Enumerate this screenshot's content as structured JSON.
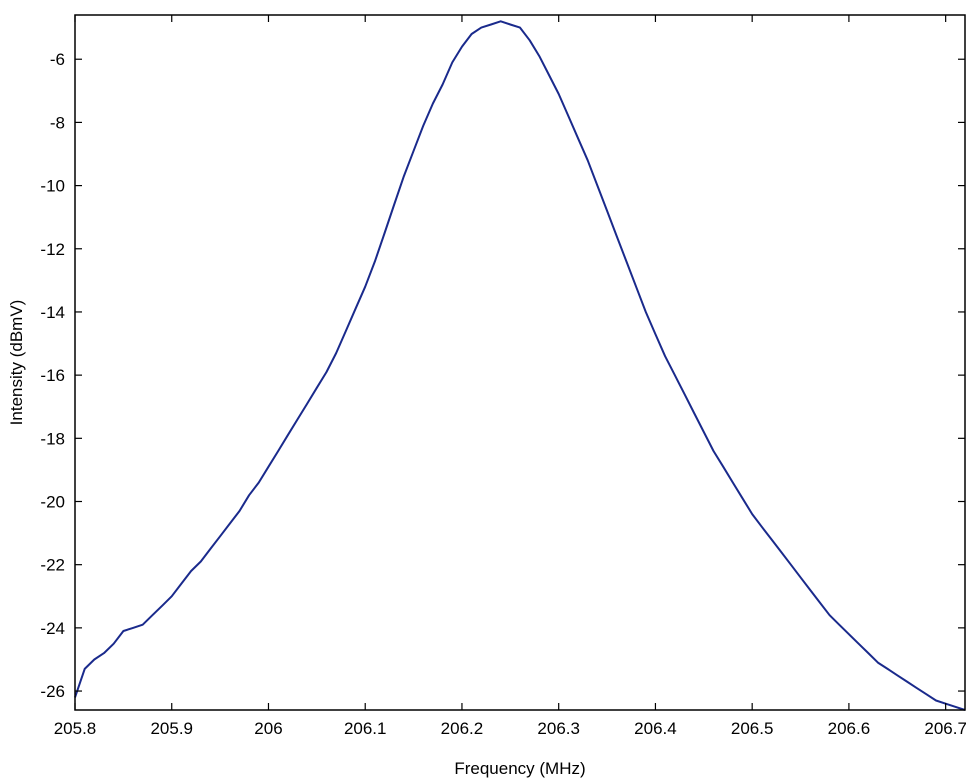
{
  "chart_data": {
    "type": "line",
    "title": "",
    "xlabel": "Frequency (MHz)",
    "ylabel": "Intensity (dBmV)",
    "xlim": [
      205.8,
      206.72
    ],
    "ylim": [
      -26.6,
      -4.6
    ],
    "xticks": [
      205.8,
      205.9,
      206,
      206.1,
      206.2,
      206.3,
      206.4,
      206.5,
      206.6,
      206.7
    ],
    "xtick_labels": [
      "205.8",
      "205.9",
      "206",
      "206.1",
      "206.2",
      "206.3",
      "206.4",
      "206.5",
      "206.6",
      "206.7"
    ],
    "yticks": [
      -6,
      -8,
      -10,
      -12,
      -14,
      -16,
      -18,
      -20,
      -22,
      -24,
      -26
    ],
    "ytick_labels": [
      "-6",
      "-8",
      "-10",
      "-12",
      "-14",
      "-16",
      "-18",
      "-20",
      "-22",
      "-24",
      "-26"
    ],
    "grid": false,
    "line_color": "#1a2a8c",
    "series": [
      {
        "x": [
          205.8,
          205.81,
          205.82,
          205.83,
          205.84,
          205.85,
          205.86,
          205.87,
          205.88,
          205.89,
          205.9,
          205.91,
          205.92,
          205.93,
          205.94,
          205.95,
          205.96,
          205.97,
          205.98,
          205.99,
          206.0,
          206.01,
          206.02,
          206.03,
          206.04,
          206.05,
          206.06,
          206.07,
          206.08,
          206.09,
          206.1,
          206.11,
          206.12,
          206.13,
          206.14,
          206.15,
          206.16,
          206.17,
          206.18,
          206.19,
          206.2,
          206.21,
          206.22,
          206.23,
          206.24,
          206.25,
          206.26,
          206.27,
          206.28,
          206.29,
          206.3,
          206.31,
          206.32,
          206.33,
          206.34,
          206.35,
          206.36,
          206.37,
          206.38,
          206.39,
          206.4,
          206.41,
          206.42,
          206.43,
          206.44,
          206.45,
          206.46,
          206.47,
          206.48,
          206.49,
          206.5,
          206.51,
          206.52,
          206.53,
          206.54,
          206.55,
          206.56,
          206.57,
          206.58,
          206.59,
          206.6,
          206.61,
          206.62,
          206.63,
          206.64,
          206.65,
          206.66,
          206.67,
          206.68,
          206.69,
          206.7,
          206.71,
          206.72
        ],
        "y": [
          -26.2,
          -25.3,
          -25.0,
          -24.8,
          -24.5,
          -24.1,
          -24.0,
          -23.9,
          -23.6,
          -23.3,
          -23.0,
          -22.6,
          -22.2,
          -21.9,
          -21.5,
          -21.1,
          -20.7,
          -20.3,
          -19.8,
          -19.4,
          -18.9,
          -18.4,
          -17.9,
          -17.4,
          -16.9,
          -16.4,
          -15.9,
          -15.3,
          -14.6,
          -13.9,
          -13.2,
          -12.4,
          -11.5,
          -10.6,
          -9.7,
          -8.9,
          -8.1,
          -7.4,
          -6.8,
          -6.1,
          -5.6,
          -5.2,
          -5.0,
          -4.9,
          -4.8,
          -4.9,
          -5.0,
          -5.4,
          -5.9,
          -6.5,
          -7.1,
          -7.8,
          -8.5,
          -9.2,
          -10.0,
          -10.8,
          -11.6,
          -12.4,
          -13.2,
          -14.0,
          -14.7,
          -15.4,
          -16.0,
          -16.6,
          -17.2,
          -17.8,
          -18.4,
          -18.9,
          -19.4,
          -19.9,
          -20.4,
          -20.8,
          -21.2,
          -21.6,
          -22.0,
          -22.4,
          -22.8,
          -23.2,
          -23.6,
          -23.9,
          -24.2,
          -24.5,
          -24.8,
          -25.1,
          -25.3,
          -25.5,
          -25.7,
          -25.9,
          -26.1,
          -26.3,
          -26.4,
          -26.5,
          -26.6
        ]
      }
    ]
  }
}
